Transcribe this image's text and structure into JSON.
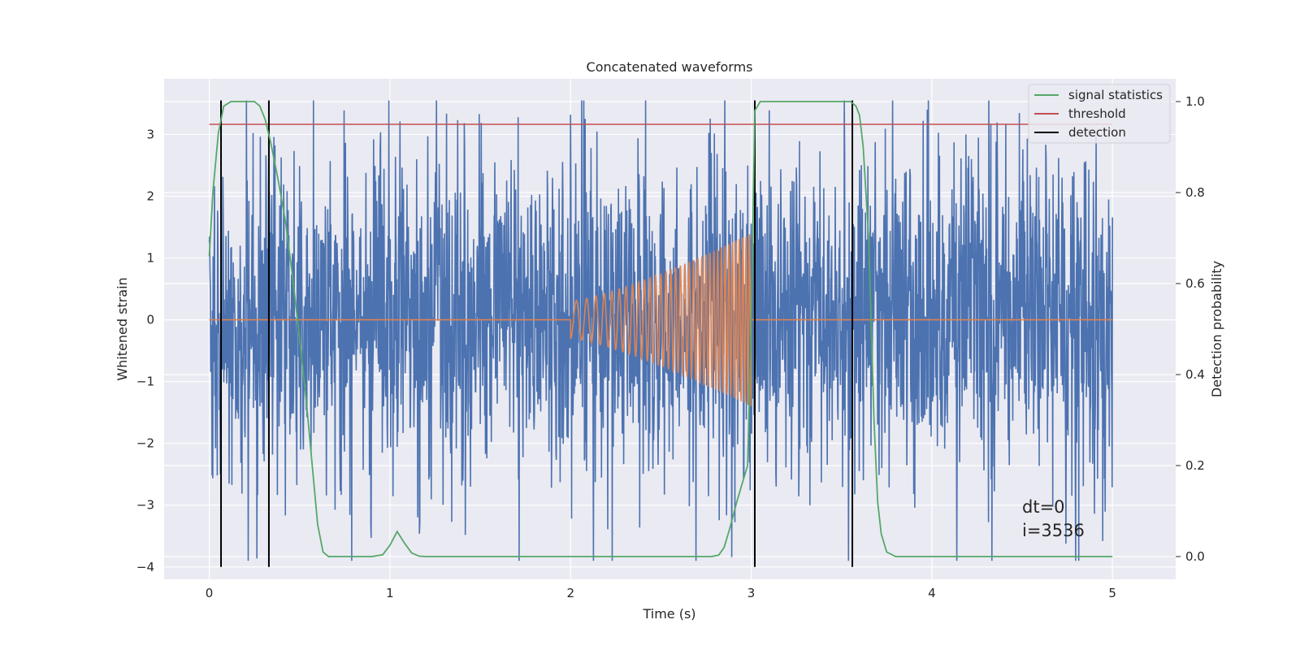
{
  "chart_data": {
    "type": "line",
    "title": "Concatenated waveforms",
    "xlabel": "Time (s)",
    "ylabel": "Whitened strain",
    "y2label": "Detection probability",
    "xlim": [
      -0.25,
      5.35
    ],
    "ylim": [
      -4.2,
      3.9
    ],
    "y2lim": [
      -0.05,
      1.05
    ],
    "x_ticks": [
      0,
      1,
      2,
      3,
      4,
      5
    ],
    "y_ticks": [
      -4,
      -3,
      -2,
      -1,
      0,
      1,
      2,
      3
    ],
    "y2_ticks": [
      0.0,
      0.2,
      0.4,
      0.6,
      0.8,
      1.0
    ],
    "grid": true,
    "legend_position": "top-right",
    "legend": [
      "signal statistics",
      "threshold",
      "detection"
    ],
    "colors": {
      "strain": "#4c72b0",
      "injection": "#dd8452",
      "signal_statistics": "#55a868",
      "threshold": "#c44e52",
      "detection": "#000000",
      "background": "#eaeaf2",
      "grid": "#ffffff"
    },
    "series": [
      {
        "name": "",
        "axis": "left",
        "role": "strain",
        "x_range": [
          0,
          5
        ],
        "amplitude_range": [
          -3.9,
          3.55
        ]
      },
      {
        "name": "",
        "axis": "left",
        "role": "injection",
        "chirp_start": 2.0,
        "chirp_end": 3.0,
        "amp_start": 0.3,
        "amp_end": 1.4,
        "freq_start": 15,
        "freq_end": 55
      },
      {
        "name": "signal statistics",
        "axis": "right",
        "x": [
          0,
          0.02,
          0.05,
          0.08,
          0.12,
          0.16,
          0.2,
          0.25,
          0.28,
          0.31,
          0.34,
          0.38,
          0.42,
          0.46,
          0.5,
          0.54,
          0.57,
          0.6,
          0.63,
          0.66,
          0.7,
          0.9,
          0.96,
          1.0,
          1.04,
          1.08,
          1.12,
          1.16,
          1.2,
          1.5,
          2.0,
          2.5,
          2.78,
          2.82,
          2.85,
          2.88,
          2.92,
          2.95,
          2.98,
          3.0,
          3.02,
          3.05,
          3.1,
          3.2,
          3.4,
          3.55,
          3.58,
          3.6,
          3.62,
          3.65,
          3.68,
          3.7,
          3.72,
          3.75,
          3.8,
          4.0,
          5.0
        ],
        "y": [
          0.66,
          0.8,
          0.93,
          0.99,
          1.0,
          1.0,
          1.0,
          1.0,
          0.99,
          0.96,
          0.91,
          0.83,
          0.74,
          0.62,
          0.48,
          0.33,
          0.2,
          0.07,
          0.01,
          0.0,
          0.0,
          0.0,
          0.004,
          0.025,
          0.055,
          0.03,
          0.008,
          0.001,
          0.0,
          0.0,
          0.0,
          0.0,
          0.0,
          0.003,
          0.02,
          0.06,
          0.12,
          0.16,
          0.2,
          0.5,
          0.98,
          1.0,
          1.0,
          1.0,
          1.0,
          1.0,
          0.99,
          0.97,
          0.9,
          0.7,
          0.3,
          0.12,
          0.05,
          0.01,
          0.0,
          0.0,
          0.0
        ]
      },
      {
        "name": "threshold",
        "axis": "right",
        "x": [
          0,
          5.0
        ],
        "y": [
          0.95,
          0.95
        ]
      }
    ],
    "detections": [
      0.065,
      0.33,
      3.02,
      3.56
    ],
    "detection_y": [
      -4.0,
      3.55
    ],
    "annotations": [
      "dt=0",
      "i=3536"
    ]
  }
}
